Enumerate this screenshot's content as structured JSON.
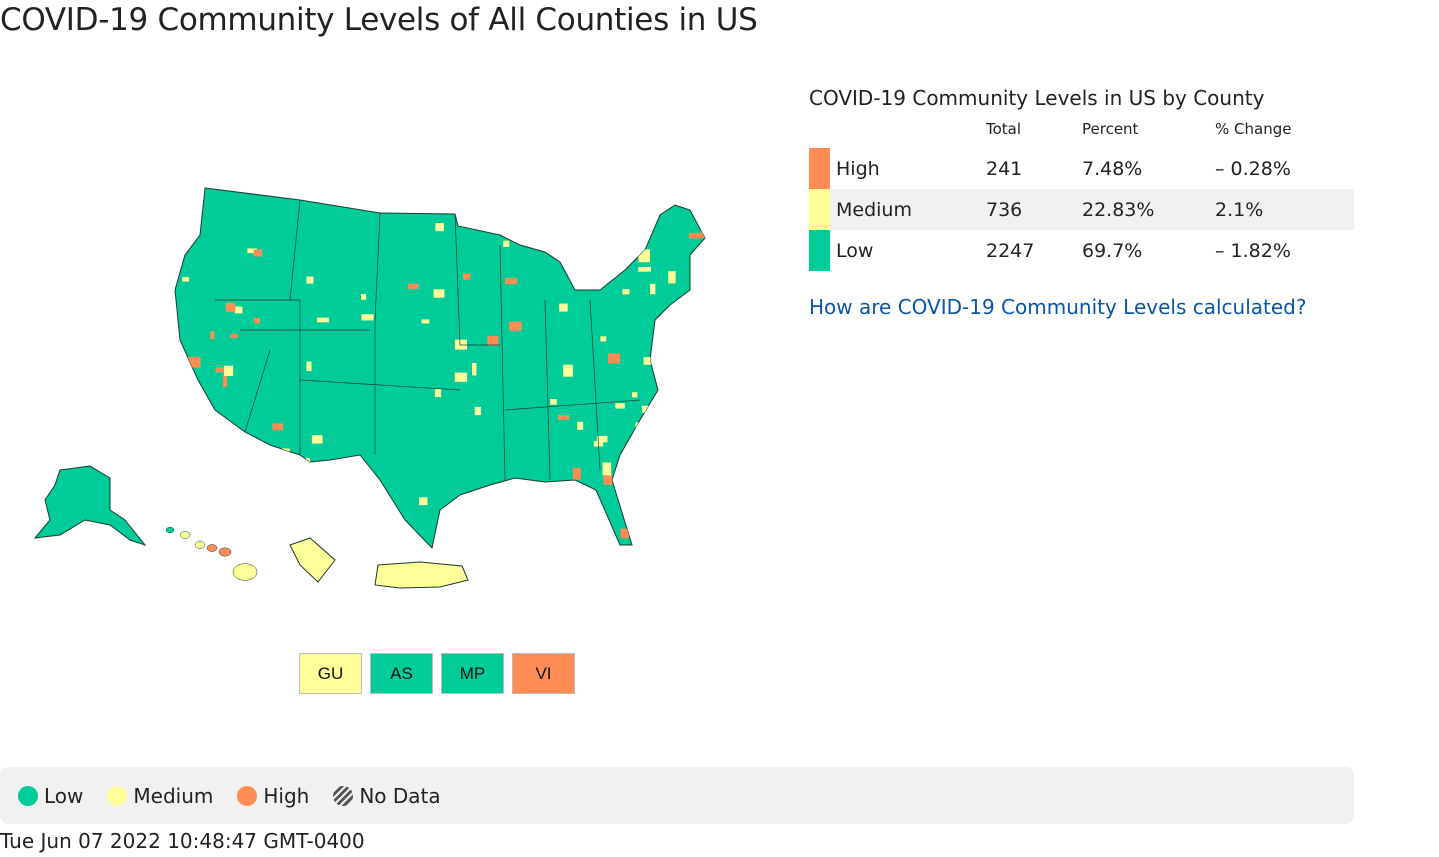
{
  "title": "COVID-19 Community Levels of All Counties in US",
  "colors": {
    "low": "#00cc99",
    "medium": "#ffff99",
    "high": "#ff8c55",
    "border": "#1a3a30"
  },
  "territories": [
    {
      "code": "GU",
      "level": "medium"
    },
    {
      "code": "AS",
      "level": "low"
    },
    {
      "code": "MP",
      "level": "low"
    },
    {
      "code": "VI",
      "level": "high"
    }
  ],
  "summary": {
    "title": "COVID-19 Community Levels in US by County",
    "headers": [
      "Total",
      "Percent",
      "% Change"
    ],
    "rows": [
      {
        "level": "High",
        "total": "241",
        "percent": "7.48%",
        "change": "– 0.28%"
      },
      {
        "level": "Medium",
        "total": "736",
        "percent": "22.83%",
        "change": "2.1%"
      },
      {
        "level": "Low",
        "total": "2247",
        "percent": "69.7%",
        "change": "– 1.82%"
      }
    ],
    "link": "How are COVID-19 Community Levels calculated?"
  },
  "legend": {
    "low": "Low",
    "medium": "Medium",
    "high": "High",
    "no_data": "No Data"
  },
  "timestamp": "Tue Jun 07 2022 10:48:47 GMT-0400"
}
